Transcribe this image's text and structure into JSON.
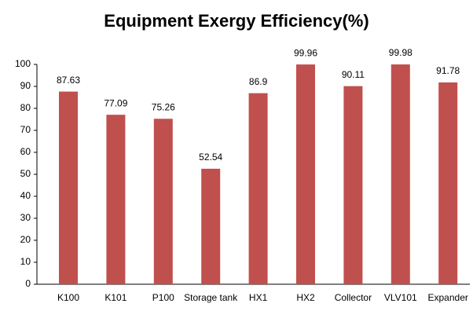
{
  "chart_data": {
    "type": "bar",
    "title": "Equipment Exergy Efficiency(%)",
    "categories": [
      "K100",
      "K101",
      "P100",
      "Storage tank",
      "HX1",
      "HX2",
      "Collector",
      "VLV101",
      "Expander"
    ],
    "values": [
      87.63,
      77.09,
      75.26,
      52.54,
      86.9,
      99.96,
      90.11,
      99.98,
      91.78
    ],
    "color": "#c0504d",
    "ylim": [
      0,
      100
    ],
    "yticks": [
      0,
      10,
      20,
      30,
      40,
      50,
      60,
      70,
      80,
      90,
      100
    ],
    "grid": false
  }
}
